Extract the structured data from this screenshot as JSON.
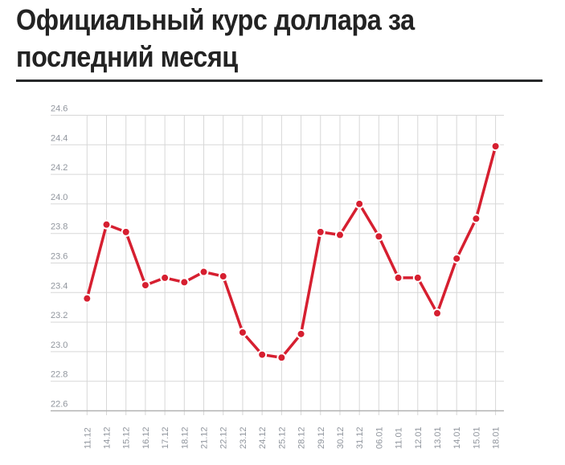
{
  "header": {
    "title_line1": "Официальный курс доллара за",
    "title_line2": "последний месяц"
  },
  "chart_data": {
    "type": "line",
    "title": "Официальный курс доллара за последний месяц",
    "xlabel": "",
    "ylabel": "",
    "x": [
      "11.12",
      "14.12",
      "15.12",
      "16.12",
      "17.12",
      "18.12",
      "21.12",
      "22.12",
      "23.12",
      "24.12",
      "25.12",
      "28.12",
      "29.12",
      "30.12",
      "31.12",
      "06.01",
      "11.01",
      "12.01",
      "13.01",
      "14.01",
      "15.01",
      "18.01"
    ],
    "series": [
      {
        "name": "Официальный курс доллара",
        "values": [
          23.36,
          23.86,
          23.81,
          23.45,
          23.5,
          23.47,
          23.54,
          23.51,
          23.13,
          22.98,
          22.96,
          23.12,
          23.81,
          23.79,
          24.0,
          23.78,
          23.5,
          23.5,
          23.26,
          23.63,
          23.9,
          24.39
        ]
      }
    ],
    "ylim": [
      22.6,
      24.6
    ],
    "ytick_step": 0.2,
    "yticks": [
      "24.6",
      "24.4",
      "24.2",
      "24.0",
      "23.8",
      "23.6",
      "23.4",
      "23.2",
      "23.0",
      "22.8",
      "22.6"
    ],
    "grid": true,
    "legend": false,
    "marker": "circle",
    "colors": {
      "line": "#d61f30",
      "grid": "#d7d7d7",
      "axis": "#b2b2b2",
      "tick_label": "#90959d",
      "title": "#232323"
    }
  }
}
